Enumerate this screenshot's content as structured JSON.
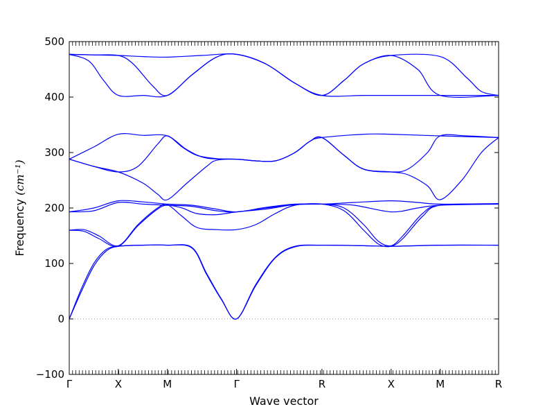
{
  "chart_data": {
    "type": "line",
    "title": "",
    "xlabel": "Wave vector",
    "ylabel": "Frequency",
    "ylabel_unit": "(cm⁻¹)",
    "ylim": [
      -100,
      500
    ],
    "yticks": [
      -100,
      0,
      100,
      200,
      300,
      400,
      500
    ],
    "grid": false,
    "legend": "none",
    "line_color": "#0000ff",
    "zero_line": {
      "y": 0,
      "color": "#888888",
      "style": "dotted"
    },
    "xlim": [
      0,
      8.75
    ],
    "high_symmetry_points": [
      {
        "label": "Γ",
        "x": 0
      },
      {
        "label": "X",
        "x": 1
      },
      {
        "label": "M",
        "x": 2
      },
      {
        "label": "Γ",
        "x": 3.41
      },
      {
        "label": "R",
        "x": 5.15
      },
      {
        "label": "X",
        "x": 6.56
      },
      {
        "label": "M",
        "x": 7.56
      },
      {
        "label": "R",
        "x": 8.75
      }
    ],
    "branches": [
      {
        "name": "band-1",
        "points": [
          [
            0,
            0
          ],
          [
            0.25,
            50
          ],
          [
            0.5,
            95
          ],
          [
            0.75,
            122
          ],
          [
            1,
            131
          ],
          [
            1.5,
            133
          ],
          [
            2,
            133
          ],
          [
            2.5,
            128
          ],
          [
            2.8,
            80
          ],
          [
            3.1,
            35
          ],
          [
            3.41,
            0
          ],
          [
            3.8,
            60
          ],
          [
            4.2,
            110
          ],
          [
            4.6,
            130
          ],
          [
            5.15,
            133
          ],
          [
            6,
            132
          ],
          [
            6.56,
            131
          ],
          [
            7.56,
            133
          ],
          [
            8.75,
            133
          ]
        ]
      },
      {
        "name": "band-2",
        "points": [
          [
            0,
            0
          ],
          [
            0.25,
            55
          ],
          [
            0.5,
            100
          ],
          [
            0.75,
            125
          ],
          [
            1,
            131
          ],
          [
            1.5,
            133
          ],
          [
            2,
            133
          ],
          [
            2.5,
            129
          ],
          [
            2.8,
            82
          ],
          [
            3.1,
            36
          ],
          [
            3.41,
            0
          ],
          [
            3.8,
            62
          ],
          [
            4.2,
            111
          ],
          [
            4.6,
            131
          ],
          [
            5.15,
            133
          ],
          [
            6,
            132
          ],
          [
            6.56,
            131
          ],
          [
            7.56,
            133
          ],
          [
            8.75,
            133
          ]
        ]
      },
      {
        "name": "band-3",
        "points": [
          [
            0,
            160
          ],
          [
            0.3,
            158
          ],
          [
            0.6,
            145
          ],
          [
            1,
            131
          ],
          [
            1.4,
            168
          ],
          [
            1.8,
            198
          ],
          [
            2,
            205
          ],
          [
            2.3,
            200
          ],
          [
            2.6,
            190
          ],
          [
            3,
            188
          ],
          [
            3.41,
            193
          ],
          [
            4,
            198
          ],
          [
            4.6,
            206
          ],
          [
            5.15,
            207
          ],
          [
            5.6,
            195
          ],
          [
            6,
            160
          ],
          [
            6.3,
            135
          ],
          [
            6.56,
            131
          ],
          [
            6.8,
            145
          ],
          [
            7.2,
            185
          ],
          [
            7.56,
            205
          ],
          [
            8.75,
            207
          ]
        ]
      },
      {
        "name": "band-4",
        "points": [
          [
            0,
            160
          ],
          [
            0.3,
            161
          ],
          [
            0.6,
            150
          ],
          [
            1,
            132
          ],
          [
            1.4,
            170
          ],
          [
            1.8,
            200
          ],
          [
            2,
            206
          ],
          [
            2.3,
            185
          ],
          [
            2.6,
            165
          ],
          [
            3,
            161
          ],
          [
            3.41,
            161
          ],
          [
            3.8,
            170
          ],
          [
            4.2,
            190
          ],
          [
            4.6,
            205
          ],
          [
            5.15,
            207
          ],
          [
            5.6,
            200
          ],
          [
            6,
            170
          ],
          [
            6.3,
            140
          ],
          [
            6.56,
            132
          ],
          [
            6.8,
            150
          ],
          [
            7.2,
            190
          ],
          [
            7.56,
            205
          ],
          [
            8.75,
            207
          ]
        ]
      },
      {
        "name": "band-5",
        "points": [
          [
            0,
            193
          ],
          [
            0.5,
            195
          ],
          [
            1,
            210
          ],
          [
            1.5,
            207
          ],
          [
            2,
            205
          ],
          [
            2.5,
            203
          ],
          [
            3,
            195
          ],
          [
            3.41,
            193
          ],
          [
            4,
            200
          ],
          [
            4.6,
            206
          ],
          [
            5.15,
            207
          ],
          [
            5.8,
            205
          ],
          [
            6.56,
            193
          ],
          [
            7.1,
            200
          ],
          [
            7.56,
            205
          ],
          [
            8.75,
            207
          ]
        ]
      },
      {
        "name": "band-6",
        "points": [
          [
            0,
            193
          ],
          [
            0.5,
            200
          ],
          [
            1,
            213
          ],
          [
            1.5,
            211
          ],
          [
            2,
            207
          ],
          [
            2.5,
            205
          ],
          [
            3,
            198
          ],
          [
            3.41,
            193
          ],
          [
            4,
            201
          ],
          [
            4.6,
            207
          ],
          [
            5.15,
            207
          ],
          [
            5.8,
            210
          ],
          [
            6.56,
            213
          ],
          [
            7.1,
            210
          ],
          [
            7.56,
            207
          ],
          [
            8.75,
            208
          ]
        ]
      },
      {
        "name": "band-7",
        "points": [
          [
            0,
            288
          ],
          [
            0.5,
            275
          ],
          [
            1,
            265
          ],
          [
            1.4,
            275
          ],
          [
            1.8,
            315
          ],
          [
            2,
            330
          ],
          [
            2.3,
            310
          ],
          [
            2.6,
            295
          ],
          [
            3,
            289
          ],
          [
            3.41,
            288
          ],
          [
            3.8,
            285
          ],
          [
            4.2,
            285
          ],
          [
            4.6,
            300
          ],
          [
            4.9,
            320
          ],
          [
            5.15,
            327
          ],
          [
            6,
            333
          ],
          [
            6.56,
            333
          ],
          [
            7.56,
            330
          ],
          [
            8.75,
            327
          ]
        ]
      },
      {
        "name": "band-8",
        "points": [
          [
            0,
            288
          ],
          [
            0.5,
            275
          ],
          [
            1,
            265
          ],
          [
            1.5,
            245
          ],
          [
            1.8,
            225
          ],
          [
            2,
            215
          ],
          [
            2.4,
            245
          ],
          [
            2.8,
            275
          ],
          [
            3,
            286
          ],
          [
            3.41,
            288
          ],
          [
            3.8,
            285
          ],
          [
            4.2,
            285
          ],
          [
            4.6,
            300
          ],
          [
            4.9,
            320
          ],
          [
            5.15,
            327
          ],
          [
            5.6,
            295
          ],
          [
            6,
            270
          ],
          [
            6.56,
            265
          ],
          [
            6.9,
            260
          ],
          [
            7.3,
            240
          ],
          [
            7.56,
            215
          ],
          [
            8,
            250
          ],
          [
            8.4,
            300
          ],
          [
            8.75,
            327
          ]
        ]
      },
      {
        "name": "band-9",
        "points": [
          [
            0,
            288
          ],
          [
            0.5,
            310
          ],
          [
            1,
            333
          ],
          [
            1.5,
            331
          ],
          [
            2,
            330
          ],
          [
            2.4,
            305
          ],
          [
            2.8,
            290
          ],
          [
            3.41,
            288
          ],
          [
            3.8,
            285
          ],
          [
            4.2,
            285
          ],
          [
            4.6,
            300
          ],
          [
            4.9,
            320
          ],
          [
            5.15,
            327
          ],
          [
            5.6,
            295
          ],
          [
            6,
            270
          ],
          [
            6.56,
            265
          ],
          [
            6.9,
            270
          ],
          [
            7.3,
            300
          ],
          [
            7.56,
            330
          ],
          [
            8.1,
            330
          ],
          [
            8.75,
            327
          ]
        ]
      },
      {
        "name": "band-10",
        "points": [
          [
            0,
            477
          ],
          [
            0.5,
            476
          ],
          [
            1,
            475
          ],
          [
            1.5,
            473
          ],
          [
            2,
            472
          ],
          [
            2.7,
            475
          ],
          [
            3.41,
            477
          ],
          [
            4,
            460
          ],
          [
            4.6,
            425
          ],
          [
            5.15,
            403
          ],
          [
            5.6,
            430
          ],
          [
            6,
            460
          ],
          [
            6.56,
            475
          ],
          [
            7.56,
            473
          ],
          [
            8.1,
            435
          ],
          [
            8.4,
            410
          ],
          [
            8.75,
            403
          ]
        ]
      },
      {
        "name": "band-11",
        "points": [
          [
            0,
            477
          ],
          [
            0.4,
            465
          ],
          [
            0.7,
            430
          ],
          [
            1,
            403
          ],
          [
            1.5,
            403
          ],
          [
            2,
            403
          ],
          [
            2.5,
            440
          ],
          [
            3,
            472
          ],
          [
            3.41,
            477
          ],
          [
            4,
            460
          ],
          [
            4.6,
            425
          ],
          [
            5.15,
            403
          ],
          [
            5.6,
            430
          ],
          [
            6,
            460
          ],
          [
            6.56,
            475
          ],
          [
            7.1,
            450
          ],
          [
            7.56,
            403
          ],
          [
            8.75,
            403
          ]
        ]
      },
      {
        "name": "band-12",
        "points": [
          [
            0,
            477
          ],
          [
            0.5,
            476
          ],
          [
            1,
            475
          ],
          [
            1.3,
            460
          ],
          [
            1.7,
            420
          ],
          [
            2,
            403
          ],
          [
            2.5,
            440
          ],
          [
            3,
            472
          ],
          [
            3.41,
            477
          ],
          [
            4,
            460
          ],
          [
            4.6,
            425
          ],
          [
            5.15,
            403
          ],
          [
            6,
            403
          ],
          [
            6.56,
            403
          ],
          [
            7.56,
            403
          ],
          [
            8.75,
            403
          ]
        ]
      }
    ]
  }
}
